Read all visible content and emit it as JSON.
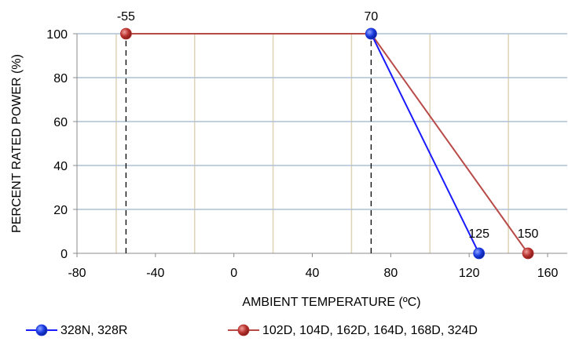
{
  "chart_data": {
    "type": "line",
    "xlabel": "AMBIENT TEMPERATURE (ºC)",
    "ylabel": "PERCENT RATED POWER (%)",
    "xlim": [
      -80,
      170
    ],
    "ylim": [
      0,
      100
    ],
    "x_ticks": [
      -80,
      -40,
      0,
      40,
      80,
      120,
      160
    ],
    "y_ticks": [
      0,
      20,
      40,
      60,
      80,
      100
    ],
    "x_tick_labels": [
      "-80",
      "-40",
      "0",
      "40",
      "80",
      "120",
      "160"
    ],
    "y_tick_labels": [
      "0",
      "20",
      "40",
      "60",
      "80",
      "100"
    ],
    "vertical_gridlines": [
      -60,
      -20,
      20,
      60,
      100,
      140
    ],
    "horizontal_gridlines": [
      20,
      40,
      60,
      80,
      100
    ],
    "grid": true,
    "legend_position": "bottom",
    "series": [
      {
        "name": "328N, 328R",
        "color": "#1a1aff",
        "marker_color": "#1a3adf",
        "x": [
          70,
          125
        ],
        "y": [
          100,
          0
        ]
      },
      {
        "name": "102D, 104D, 162D, 164D, 168D, 324D",
        "color": "#b84a47",
        "marker_color": "#b8322f",
        "x": [
          -55,
          70,
          150
        ],
        "y": [
          100,
          100,
          0
        ]
      }
    ],
    "reference_lines": [
      {
        "x": -55,
        "y_from": 0,
        "y_to": 100,
        "style": "dashed"
      },
      {
        "x": 70,
        "y_from": 0,
        "y_to": 100,
        "style": "dashed"
      }
    ],
    "annotations": [
      {
        "text": "-55",
        "x": -55,
        "y": 100
      },
      {
        "text": "70",
        "x": 70,
        "y": 100
      },
      {
        "text": "125",
        "x": 125,
        "y": 0
      },
      {
        "text": "150",
        "x": 150,
        "y": 0
      }
    ],
    "colors": {
      "y_gridline": "#aebfd4",
      "x_gridline": "#ddd3b5",
      "axis": "#8c8c8c",
      "reference_line": "#000000"
    }
  }
}
